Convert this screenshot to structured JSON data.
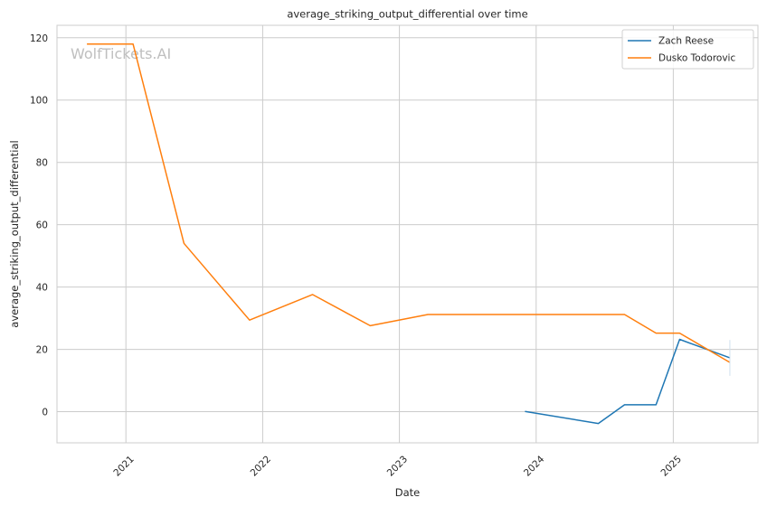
{
  "watermark": "WolfTickets.AI",
  "chart_data": {
    "type": "line",
    "title": "average_striking_output_differential over time",
    "xlabel": "Date",
    "ylabel": "average_striking_output_differential",
    "x_ticks": [
      "2021",
      "2022",
      "2023",
      "2024",
      "2025"
    ],
    "y_ticks": [
      0,
      20,
      40,
      60,
      80,
      100,
      120
    ],
    "xlim": [
      "2020-07-01",
      "2025-08-15"
    ],
    "ylim": [
      -10,
      124
    ],
    "grid": true,
    "legend_position": "top-right",
    "series": [
      {
        "name": "Zach Reese",
        "color": "#1f77b4",
        "points": [
          {
            "x": "2023-12-02",
            "y": 0.1
          },
          {
            "x": "2024-06-15",
            "y": -3.8
          },
          {
            "x": "2024-08-24",
            "y": 2.2
          },
          {
            "x": "2024-11-16",
            "y": 2.2
          },
          {
            "x": "2025-01-18",
            "y": 23.2
          },
          {
            "x": "2025-06-01",
            "y": 17.3
          }
        ]
      },
      {
        "name": "Dusko Todorovic",
        "color": "#ff7f0e",
        "points": [
          {
            "x": "2020-09-19",
            "y": 118
          },
          {
            "x": "2021-01-20",
            "y": 118
          },
          {
            "x": "2021-06-05",
            "y": 54
          },
          {
            "x": "2021-11-27",
            "y": 29.4
          },
          {
            "x": "2022-05-14",
            "y": 37.6
          },
          {
            "x": "2022-10-15",
            "y": 27.6
          },
          {
            "x": "2023-03-18",
            "y": 31.2
          },
          {
            "x": "2024-08-24",
            "y": 31.2
          },
          {
            "x": "2024-11-16",
            "y": 25.2
          },
          {
            "x": "2025-01-18",
            "y": 25.2
          },
          {
            "x": "2025-06-01",
            "y": 15.8
          }
        ]
      }
    ]
  }
}
